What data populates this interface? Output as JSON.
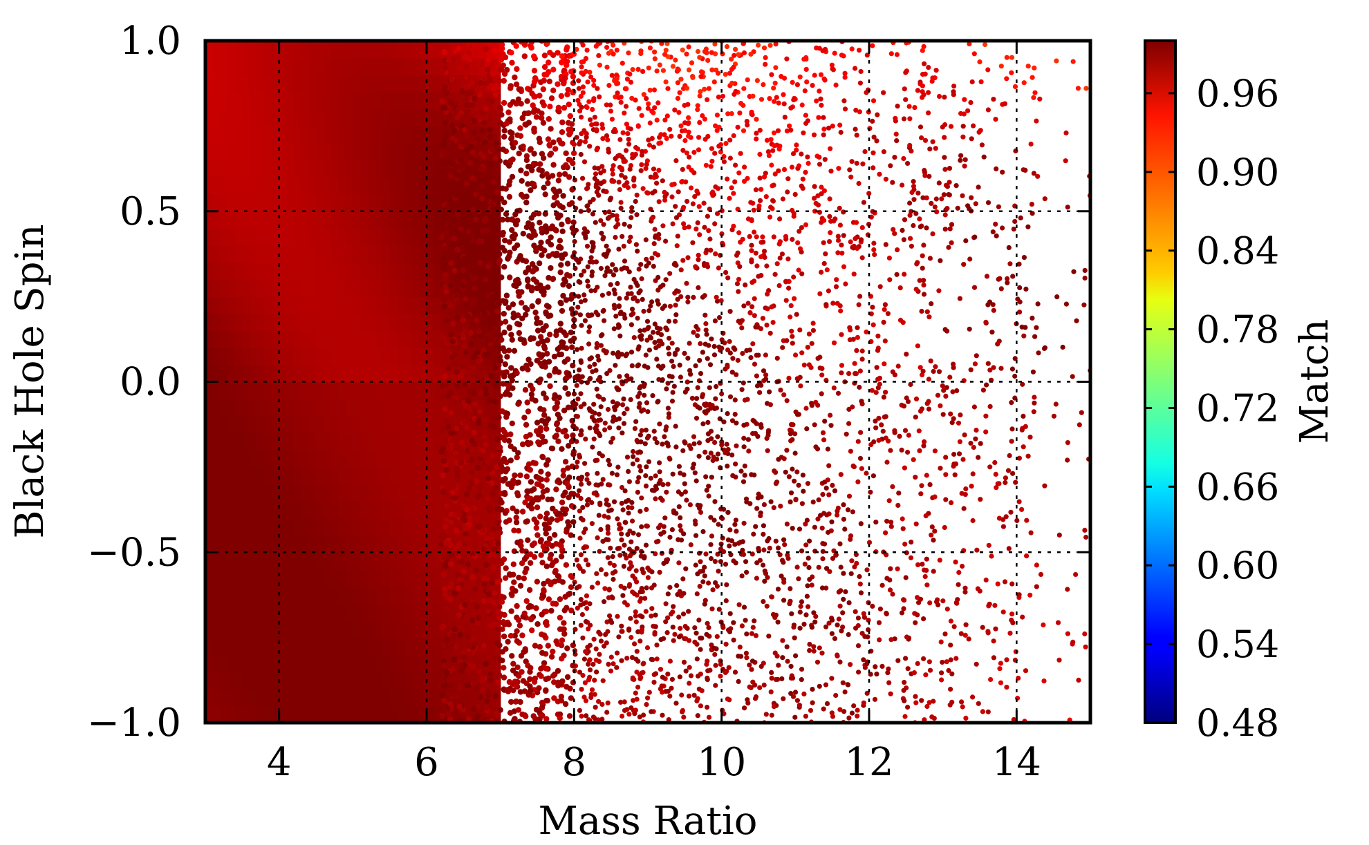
{
  "chart_data": {
    "type": "scatter",
    "xlabel": "Mass Ratio",
    "ylabel": "Black Hole Spin",
    "xlim": [
      3,
      15
    ],
    "ylim": [
      -1.0,
      1.0
    ],
    "xticks": [
      4,
      6,
      8,
      10,
      12,
      14
    ],
    "xtick_labels": [
      "4",
      "6",
      "8",
      "10",
      "12",
      "14"
    ],
    "yticks": [
      1.0,
      0.5,
      0.0,
      -0.5,
      -1.0
    ],
    "ytick_labels": [
      "1.0",
      "0.5",
      "0.0",
      "−0.5",
      "−1.0"
    ],
    "grid": true,
    "colorbar": {
      "label": "Match",
      "range": [
        0.48,
        1.0
      ],
      "colormap": "jet",
      "ticks": [
        0.96,
        0.9,
        0.84,
        0.78,
        0.72,
        0.66,
        0.6,
        0.54,
        0.48
      ],
      "tick_labels": [
        "0.96",
        "0.90",
        "0.84",
        "0.78",
        "0.72",
        "0.66",
        "0.60",
        "0.54",
        "0.48"
      ]
    },
    "points_description": "dense scatter of match values over mass ratio 3–15 and spin −1 to 1; match mostly 0.93–1.0, dropping to ~0.86 for high spin at large mass ratio",
    "match_model": {
      "min": 0.86,
      "max": 1.0
    },
    "density": {
      "x_full_until": 7,
      "x_sparse_end": 15
    }
  }
}
